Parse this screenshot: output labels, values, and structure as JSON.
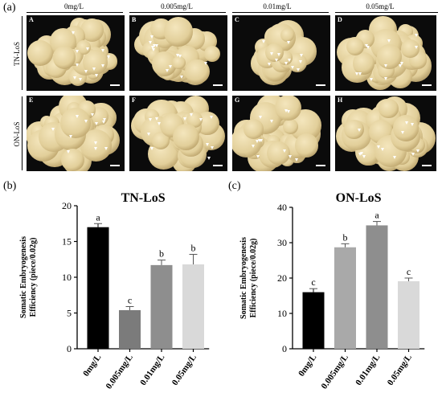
{
  "panel_labels": {
    "a": "(a)",
    "b": "(b)",
    "c": "(c)"
  },
  "photo_grid": {
    "columns": [
      "0mg/L",
      "0.005mg/L",
      "0.01mg/L",
      "0.05mg/L"
    ],
    "rows": [
      "TN-LoS",
      "ON-LoS"
    ],
    "tiles": [
      {
        "tag": "A",
        "row": "TN-LoS",
        "col": "0mg/L"
      },
      {
        "tag": "B",
        "row": "TN-LoS",
        "col": "0.005mg/L"
      },
      {
        "tag": "C",
        "row": "TN-LoS",
        "col": "0.01mg/L"
      },
      {
        "tag": "D",
        "row": "TN-LoS",
        "col": "0.05mg/L"
      },
      {
        "tag": "E",
        "row": "ON-LoS",
        "col": "0mg/L"
      },
      {
        "tag": "F",
        "row": "ON-LoS",
        "col": "0.005mg/L"
      },
      {
        "tag": "G",
        "row": "ON-LoS",
        "col": "0.01mg/L"
      },
      {
        "tag": "H",
        "row": "ON-LoS",
        "col": "0.05mg/L"
      }
    ],
    "colors": {
      "background": "#0b0b0b",
      "callus": "#e2cf9a",
      "marker": "#ffffff"
    }
  },
  "chart_data": [
    {
      "type": "bar",
      "panel": "(b)",
      "title": "TN-LoS",
      "ylabel": "Somatic Embryogenesis Efficiency (piece/0.02g)",
      "xlabel": "",
      "categories": [
        "0mg/L",
        "0.005mg/L",
        "0.01mg/L",
        "0.05mg/L"
      ],
      "values": [
        17.0,
        5.4,
        11.7,
        11.8
      ],
      "errors": [
        0.5,
        0.5,
        0.7,
        1.4
      ],
      "letters": [
        "a",
        "c",
        "b",
        "b"
      ],
      "colors": [
        "#000000",
        "#7b7b7b",
        "#8e8e8e",
        "#d9d9d9"
      ],
      "ylim": [
        0,
        20
      ],
      "yticks": [
        0,
        5,
        10,
        15,
        20
      ],
      "grid": false
    },
    {
      "type": "bar",
      "panel": "(c)",
      "title": "ON-LoS",
      "ylabel": "Somatic Embryogenesis Efficiency (piece/0.02g)",
      "xlabel": "",
      "categories": [
        "0mg/L",
        "0.005mg/L",
        "0.01mg/L",
        "0.05mg/L"
      ],
      "values": [
        16.0,
        28.7,
        34.9,
        19.1
      ],
      "errors": [
        1.0,
        1.0,
        1.1,
        0.9
      ],
      "letters": [
        "c",
        "b",
        "a",
        "c"
      ],
      "colors": [
        "#000000",
        "#a9a9a9",
        "#8e8e8e",
        "#d9d9d9"
      ],
      "ylim": [
        0,
        40
      ],
      "yticks": [
        0,
        10,
        20,
        30,
        40
      ],
      "grid": false
    }
  ]
}
